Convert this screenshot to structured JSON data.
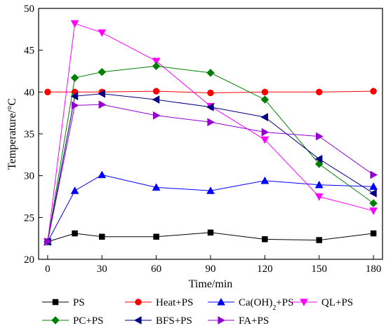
{
  "chart_data": {
    "type": "line",
    "xlabel": "Time/min",
    "ylabel": "Temperature/°C",
    "x": [
      0,
      15,
      30,
      60,
      90,
      120,
      150,
      180
    ],
    "xlim": [
      -5,
      185
    ],
    "ylim": [
      20,
      50
    ],
    "xticks": [
      0,
      30,
      60,
      90,
      120,
      150,
      180
    ],
    "yticks": [
      20,
      25,
      30,
      35,
      40,
      45,
      50
    ],
    "legend_position": "bottom",
    "grid": false,
    "series": [
      {
        "name": "PS",
        "color": "#000000",
        "marker": "square",
        "values": [
          22.1,
          23.1,
          22.7,
          22.7,
          23.2,
          22.4,
          22.3,
          23.1
        ]
      },
      {
        "name": "Heat+PS",
        "color": "#ff0000",
        "marker": "circle",
        "values": [
          40.0,
          40.0,
          40.0,
          40.1,
          39.9,
          40.0,
          40.0,
          40.1
        ]
      },
      {
        "name": "Ca(OH)2+PS",
        "color": "#0000ff",
        "marker": "triangle-up",
        "values": [
          22.1,
          28.2,
          30.1,
          28.6,
          28.2,
          29.4,
          28.9,
          28.7
        ]
      },
      {
        "name": "QL+PS",
        "color": "#ff00ff",
        "marker": "triangle-down",
        "values": [
          22.1,
          48.2,
          47.1,
          43.7,
          38.3,
          34.3,
          27.5,
          25.8
        ]
      },
      {
        "name": "PC+PS",
        "color": "#008000",
        "marker": "diamond",
        "values": [
          22.1,
          41.7,
          42.4,
          43.1,
          42.3,
          39.1,
          31.4,
          26.7
        ]
      },
      {
        "name": "BFS+PS",
        "color": "#000080",
        "marker": "triangle-left",
        "values": [
          22.1,
          39.5,
          39.8,
          39.1,
          38.2,
          37.0,
          32.0,
          27.9
        ]
      },
      {
        "name": "FA+PS",
        "color": "#9400d3",
        "marker": "triangle-right",
        "values": [
          22.1,
          38.4,
          38.5,
          37.2,
          36.4,
          35.2,
          34.7,
          30.1
        ]
      }
    ]
  }
}
